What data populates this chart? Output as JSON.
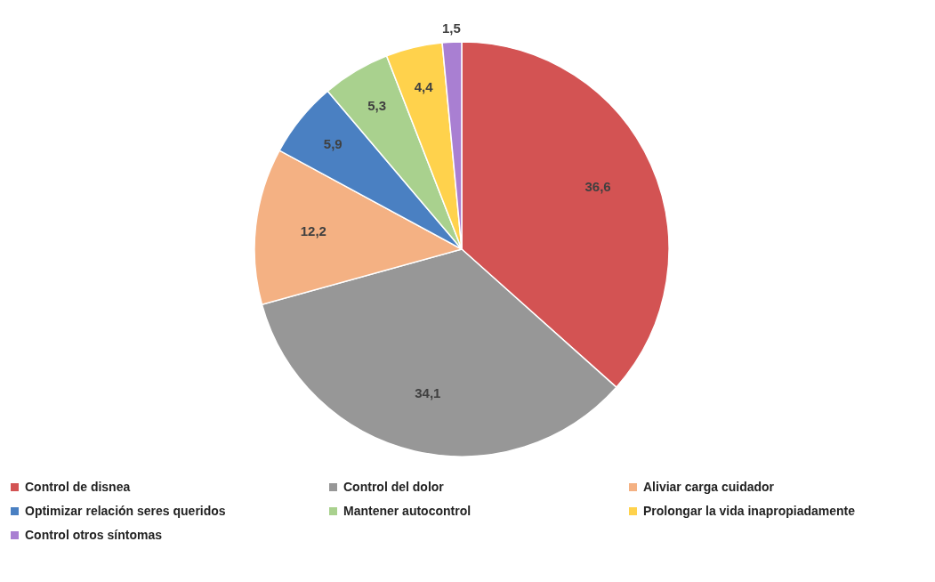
{
  "chart_data": {
    "type": "pie",
    "categories": [
      "Control de disnea",
      "Control del dolor",
      "Aliviar carga cuidador",
      "Optimizar relación seres queridos",
      "Mantener autocontrol",
      "Prolongar la vida inapropiadamente",
      "Control otros síntomas"
    ],
    "values": [
      36.6,
      34.1,
      12.2,
      5.9,
      5.3,
      4.4,
      1.5
    ],
    "value_labels": [
      "36,6",
      "34,1",
      "12,2",
      "5,9",
      "5,3",
      "4,4",
      "1,5"
    ],
    "colors": [
      "#d35353",
      "#979797",
      "#f4b183",
      "#4a80c2",
      "#a9d18e",
      "#ffd24c",
      "#a97fd2"
    ],
    "legend": "bottom"
  }
}
